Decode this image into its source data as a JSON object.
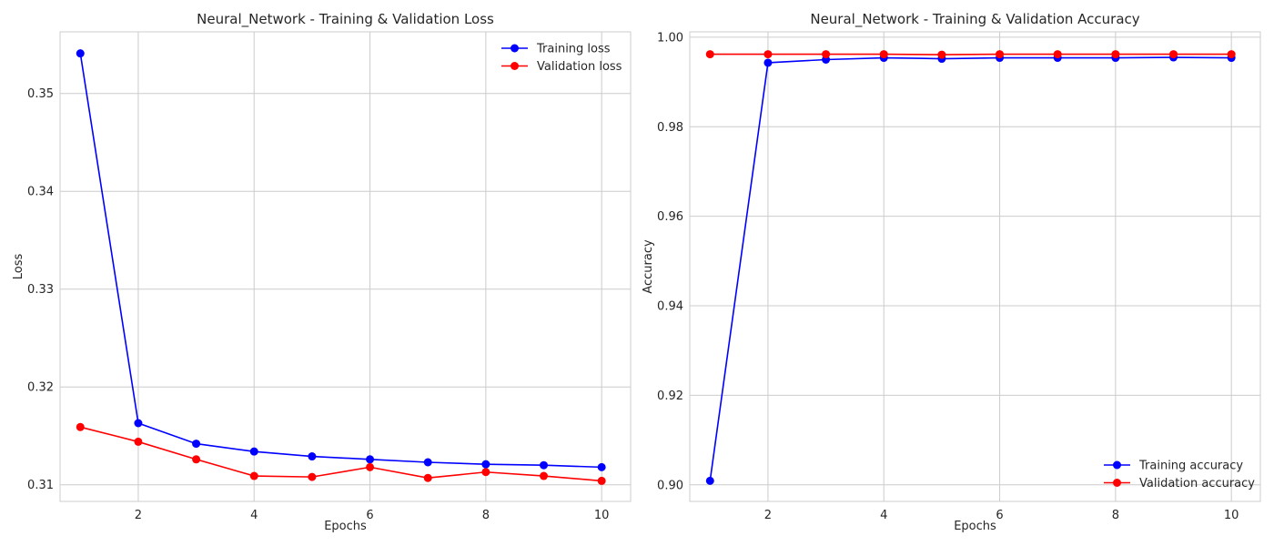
{
  "chart_data": [
    {
      "type": "line",
      "title": "Neural_Network - Training & Validation Loss",
      "xlabel": "Epochs",
      "ylabel": "Loss",
      "x": [
        1,
        2,
        3,
        4,
        5,
        6,
        7,
        8,
        9,
        10
      ],
      "xlim": [
        0.65,
        10.5
      ],
      "ylim": [
        0.3083,
        0.3563
      ],
      "xticks": [
        2,
        4,
        6,
        8,
        10
      ],
      "yticks": [
        0.31,
        0.32,
        0.33,
        0.34,
        0.35
      ],
      "xtick_labels": [
        "2",
        "4",
        "6",
        "8",
        "10"
      ],
      "ytick_labels": [
        "0.31",
        "0.32",
        "0.33",
        "0.34",
        "0.35"
      ],
      "grid": true,
      "legend_position": "top-right",
      "series": [
        {
          "name": "Training loss",
          "color": "#0000ff",
          "marker": "circle",
          "values": [
            0.3541,
            0.3163,
            0.3142,
            0.3134,
            0.3129,
            0.3126,
            0.3123,
            0.3121,
            0.312,
            0.3118
          ]
        },
        {
          "name": "Validation loss",
          "color": "#ff0000",
          "marker": "circle",
          "values": [
            0.3159,
            0.3144,
            0.3126,
            0.3109,
            0.3108,
            0.3118,
            0.3107,
            0.3113,
            0.3109,
            0.3104
          ]
        }
      ]
    },
    {
      "type": "line",
      "title": "Neural_Network - Training & Validation Accuracy",
      "xlabel": "Epochs",
      "ylabel": "Accuracy",
      "x": [
        1,
        2,
        3,
        4,
        5,
        6,
        7,
        8,
        9,
        10
      ],
      "xlim": [
        0.65,
        10.5
      ],
      "ylim": [
        0.8963,
        1.0012
      ],
      "xticks": [
        2,
        4,
        6,
        8,
        10
      ],
      "yticks": [
        0.9,
        0.92,
        0.94,
        0.96,
        0.98,
        1.0
      ],
      "xtick_labels": [
        "2",
        "4",
        "6",
        "8",
        "10"
      ],
      "ytick_labels": [
        "0.90",
        "0.92",
        "0.94",
        "0.96",
        "0.98",
        "1.00"
      ],
      "grid": true,
      "legend_position": "bottom-right",
      "series": [
        {
          "name": "Training accuracy",
          "color": "#0000ff",
          "marker": "circle",
          "values": [
            0.9009,
            0.9943,
            0.995,
            0.9954,
            0.9952,
            0.9954,
            0.9954,
            0.9954,
            0.9955,
            0.9954
          ]
        },
        {
          "name": "Validation accuracy",
          "color": "#ff0000",
          "marker": "circle",
          "values": [
            0.9962,
            0.9962,
            0.9962,
            0.9962,
            0.9961,
            0.9962,
            0.9962,
            0.9962,
            0.9962,
            0.9962
          ]
        }
      ]
    }
  ]
}
